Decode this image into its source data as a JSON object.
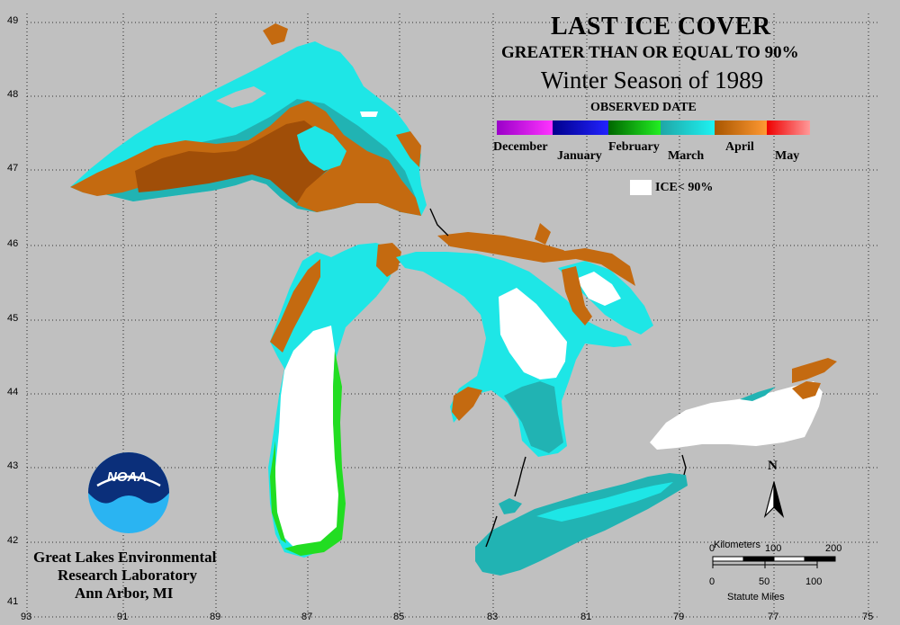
{
  "map": {
    "title": "LAST ICE COVER",
    "subtitle": "GREATER THAN OR EQUAL TO 90%",
    "season": "Winter Season of 1989",
    "legend_title": "OBSERVED DATE",
    "legend": [
      {
        "label": "December",
        "colors": [
          "#9a00c8",
          "#ff33ff"
        ]
      },
      {
        "label": "January",
        "colors": [
          "#00008c",
          "#2222ff"
        ]
      },
      {
        "label": "February",
        "colors": [
          "#006600",
          "#22ee22"
        ]
      },
      {
        "label": "March",
        "colors": [
          "#1fa6a6",
          "#1ef2f2"
        ]
      },
      {
        "label": "April",
        "colors": [
          "#a85600",
          "#ff9933"
        ]
      },
      {
        "label": "May",
        "colors": [
          "#ee0000",
          "#ff9999"
        ]
      }
    ],
    "ice_less_label": "ICE< 90%",
    "lat_labels": [
      "49",
      "48",
      "47",
      "46",
      "45",
      "44",
      "43",
      "42",
      "41"
    ],
    "lon_labels": [
      "93",
      "91",
      "89",
      "87",
      "85",
      "83",
      "81",
      "79",
      "77",
      "75"
    ],
    "north_label": "N",
    "scale": {
      "km_label": "Kilometers",
      "km_ticks": [
        "0",
        "100",
        "200"
      ],
      "mi_ticks": [
        "0",
        "50",
        "100"
      ],
      "mi_label": "Statute Miles"
    },
    "logo_text": "NOAA",
    "org_lines": [
      "Great Lakes Environmental",
      "Research Laboratory",
      "Ann Arbor, MI"
    ],
    "colors": {
      "background": "#c0c0c0",
      "march": "#1ee6e6",
      "march_dark": "#21b3b3",
      "april": "#c46a10",
      "april_dark": "#a04e08",
      "february": "#22dd22",
      "ice_below_90": "#ffffff"
    }
  }
}
